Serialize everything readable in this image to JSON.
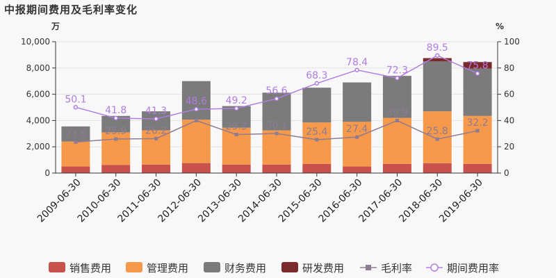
{
  "title": "中报期间费用及毛利率变化",
  "colors": {
    "sales": "#c9514c",
    "admin": "#f7994a",
    "finance": "#7b7b7b",
    "rnd": "#7a2a2a",
    "gross": "#8e7b94",
    "expense": "#b07de0"
  },
  "chart_data": {
    "type": "bar",
    "stacked": true,
    "y_unit_left": "万",
    "y_unit_right": "%",
    "ylim_left": [
      0,
      10000
    ],
    "yticks_left": [
      0,
      2000,
      4000,
      6000,
      8000,
      10000
    ],
    "ytick_labels_left": [
      "0",
      "2,000",
      "4,000",
      "6,000",
      "8,000",
      "10,000"
    ],
    "ylim_right": [
      0,
      100
    ],
    "yticks_right": [
      0,
      20,
      40,
      60,
      80,
      100
    ],
    "categories": [
      "2009-06-30",
      "2010-06-30",
      "2011-06-30",
      "2012-06-30",
      "2013-06-30",
      "2014-06-30",
      "2015-06-30",
      "2016-06-30",
      "2017-06-30",
      "2018-06-30",
      "2019-06-30"
    ],
    "series": [
      {
        "name": "销售费用",
        "key": "sales",
        "values": [
          500,
          620,
          650,
          760,
          650,
          650,
          700,
          500,
          700,
          750,
          700
        ]
      },
      {
        "name": "管理费用",
        "key": "admin",
        "values": [
          1900,
          2480,
          2600,
          3300,
          2800,
          2600,
          3150,
          3400,
          3500,
          3950,
          3650
        ]
      },
      {
        "name": "财务费用",
        "key": "finance",
        "values": [
          1150,
          1250,
          1450,
          2940,
          1650,
          2870,
          2650,
          3000,
          3200,
          3800,
          3600
        ]
      },
      {
        "name": "研发费用",
        "key": "rnd",
        "values": [
          0,
          0,
          0,
          0,
          0,
          0,
          0,
          0,
          0,
          250,
          500
        ]
      }
    ],
    "lines": [
      {
        "name": "毛利率",
        "key": "gross",
        "values": [
          23.6,
          25.9,
          26.2,
          40.0,
          29.3,
          30.1,
          25.4,
          27.4,
          39.9,
          25.8,
          32.2
        ],
        "labels": [
          "23.6",
          "25.9",
          "26.2",
          "",
          "29.3",
          "30.1",
          "25.4",
          "27.4",
          "39.9",
          "25.8",
          "32.2"
        ]
      },
      {
        "name": "期间费用率",
        "key": "expense",
        "values": [
          50.1,
          41.8,
          41.3,
          48.6,
          49.2,
          56.6,
          68.3,
          78.4,
          72.3,
          89.5,
          75.8
        ],
        "labels": [
          "50.1",
          "41.8",
          "41.3",
          "48.6",
          "49.2",
          "56.6",
          "68.3",
          "78.4",
          "72.3",
          "89.5",
          "75.8"
        ]
      }
    ],
    "legend": [
      {
        "label": "销售费用",
        "key": "sales",
        "kind": "bar"
      },
      {
        "label": "管理费用",
        "key": "admin",
        "kind": "bar"
      },
      {
        "label": "财务费用",
        "key": "finance",
        "kind": "bar"
      },
      {
        "label": "研发费用",
        "key": "rnd",
        "kind": "bar"
      },
      {
        "label": "毛利率",
        "key": "gross",
        "kind": "line"
      },
      {
        "label": "期间费用率",
        "key": "expense",
        "kind": "line"
      }
    ]
  }
}
